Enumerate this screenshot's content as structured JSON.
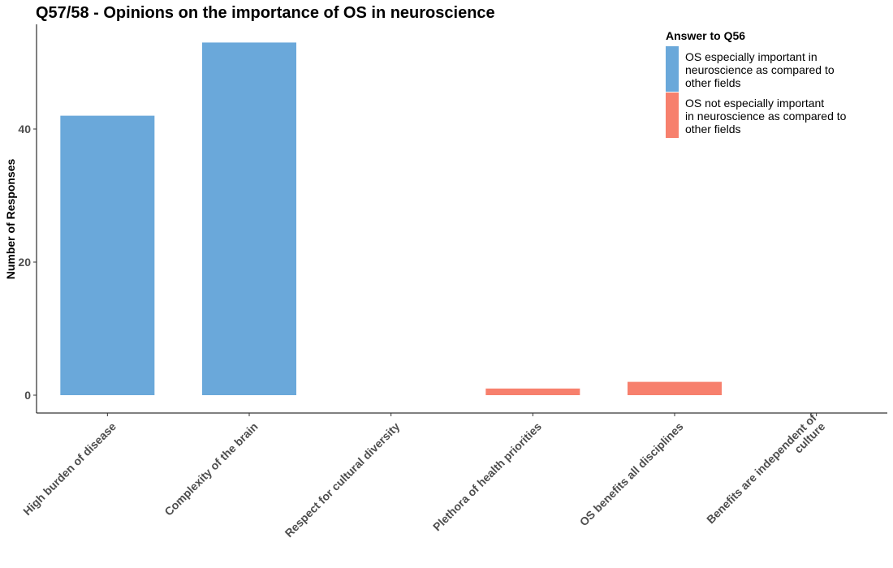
{
  "chart_data": {
    "type": "bar",
    "title": "Q57/58 - Opinions on the importance of OS in neuroscience",
    "ylabel": "Number of Responses",
    "xlabel": "",
    "ylim": [
      0,
      55
    ],
    "yticks": [
      0,
      20,
      40
    ],
    "grid": false,
    "legend_placement": "top-right",
    "legend_title": "Answer to Q56",
    "categories": [
      [
        "High burden of disease"
      ],
      [
        "Complexity of the brain"
      ],
      [
        "Respect for cultural diversity"
      ],
      [
        "Plethora of health priorities"
      ],
      [
        "OS benefits all disciplines"
      ],
      [
        "Benefits are independent of",
        "culture"
      ]
    ],
    "series": [
      {
        "name": [
          "OS especially important in",
          "neuroscience as compared to",
          "other fields"
        ],
        "color": "#6AA8DA",
        "values": [
          42,
          53,
          0,
          0,
          0,
          0
        ]
      },
      {
        "name": [
          "OS not especially important",
          "in neuroscience as compared to",
          "other fields"
        ],
        "color": "#F7806D",
        "values": [
          0,
          0,
          0,
          1,
          2,
          0
        ]
      }
    ]
  }
}
